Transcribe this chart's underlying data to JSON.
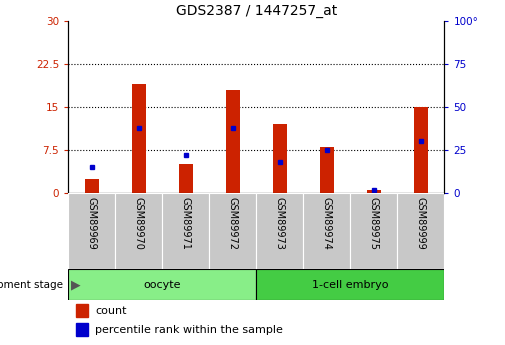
{
  "title": "GDS2387 / 1447257_at",
  "categories": [
    "GSM89969",
    "GSM89970",
    "GSM89971",
    "GSM89972",
    "GSM89973",
    "GSM89974",
    "GSM89975",
    "GSM89999"
  ],
  "count_values": [
    2.5,
    19.0,
    5.0,
    18.0,
    12.0,
    8.0,
    0.5,
    15.0
  ],
  "percentile_values": [
    15,
    38,
    22,
    38,
    18,
    25,
    2,
    30
  ],
  "left_ylim": [
    0,
    30
  ],
  "right_ylim": [
    0,
    100
  ],
  "left_yticks": [
    0,
    7.5,
    15,
    22.5,
    30
  ],
  "right_yticks": [
    0,
    25,
    50,
    75,
    100
  ],
  "left_ytick_labels": [
    "0",
    "7.5",
    "15",
    "22.5",
    "30"
  ],
  "right_ytick_labels": [
    "0",
    "25",
    "50",
    "75",
    "100°"
  ],
  "bar_color": "#cc2200",
  "percentile_color": "#0000cc",
  "bar_width": 0.3,
  "groups": [
    {
      "label": "oocyte",
      "indices": [
        0,
        1,
        2,
        3
      ],
      "color": "#88ee88"
    },
    {
      "label": "1-cell embryo",
      "indices": [
        4,
        5,
        6,
        7
      ],
      "color": "#44cc44"
    }
  ],
  "group_label": "development stage",
  "legend_count_label": "count",
  "legend_percentile_label": "percentile rank within the sample",
  "background_color": "#ffffff",
  "tick_bg_color": "#c8c8c8",
  "title_fontsize": 10,
  "tick_fontsize": 7.5
}
